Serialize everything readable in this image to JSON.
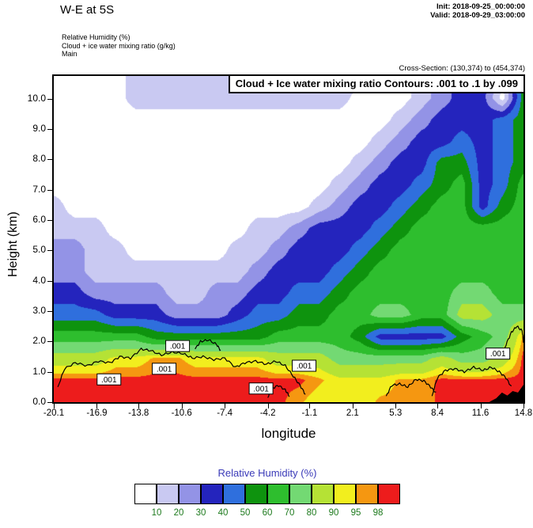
{
  "header": {
    "title": "W-E at 5S",
    "init_line": "Init: 2018-09-25_00:00:00",
    "valid_line": "Valid: 2018-09-29_03:00:00",
    "legend_lines": [
      "Relative Humidity  (%)",
      "Cloud + ice water mixing ratio  (g/kg)",
      "Main"
    ],
    "cross_section": "Cross-Section: (130,374) to (454,374)"
  },
  "plot": {
    "inner_title": "Cloud + Ice water mixing ratio Contours: .001 to .1 by .099",
    "xlabel": "longitude",
    "ylabel": "Height (km)"
  },
  "colorbar": {
    "title": "Relative Humidity  (%)",
    "labels": [
      "10",
      "20",
      "30",
      "40",
      "50",
      "60",
      "70",
      "80",
      "90",
      "95",
      "98"
    ],
    "title_color": "#3a3ab8",
    "label_color": "#1d7a1d"
  },
  "chart_data": {
    "type": "heatmap",
    "title": "Cloud + Ice water mixing ratio Contours: .001 to .1 by .099",
    "xlabel": "longitude",
    "ylabel": "Height (km)",
    "x_range": [
      -20.1,
      14.8
    ],
    "y_range": [
      0,
      10.75
    ],
    "x_ticks": [
      "-20.1",
      "-16.9",
      "-13.8",
      "-10.6",
      "-7.4",
      "-4.2",
      "-1.1",
      "2.1",
      "5.3",
      "8.4",
      "11.6",
      "14.8"
    ],
    "y_ticks": [
      "0.0",
      "1.0",
      "2.0",
      "3.0",
      "4.0",
      "5.0",
      "6.0",
      "7.0",
      "8.0",
      "9.0",
      "10.0"
    ],
    "palette": {
      "thresholds": [
        10,
        20,
        30,
        40,
        50,
        60,
        70,
        80,
        90,
        95,
        98
      ],
      "colors": [
        "#ffffff",
        "#c9c9f2",
        "#9393e6",
        "#2424bd",
        "#2f6fdd",
        "#0e930e",
        "#2ebe2e",
        "#73d973",
        "#b5e235",
        "#f2ee1e",
        "#f59711",
        "#ed1c1c"
      ]
    },
    "x": [
      -20.1,
      -18.58,
      -17.07,
      -15.55,
      -14.03,
      -12.51,
      -11.0,
      -9.48,
      -7.96,
      -6.44,
      -4.93,
      -3.41,
      -1.89,
      -0.37,
      1.14,
      2.66,
      4.18,
      5.7,
      7.21,
      8.73,
      10.25,
      11.77,
      13.28,
      14.8
    ],
    "y": [
      0,
      0.72,
      1.43,
      2.15,
      2.87,
      3.58,
      4.3,
      5.02,
      5.73,
      6.45,
      7.17,
      7.88,
      8.6,
      9.32,
      10.03,
      10.75
    ],
    "rh_values": [
      [
        99,
        99,
        99,
        99,
        99,
        99,
        99,
        99,
        99,
        99,
        99,
        99,
        96,
        92,
        92,
        92,
        96,
        96,
        96,
        99,
        99,
        99,
        99,
        99
      ],
      [
        99,
        99,
        99,
        99,
        99,
        99,
        99,
        99,
        99,
        99,
        99,
        99,
        99,
        96,
        92,
        92,
        92,
        96,
        96,
        99,
        99,
        99,
        99,
        99
      ],
      [
        85,
        85,
        85,
        92,
        92,
        96,
        96,
        92,
        92,
        92,
        92,
        85,
        85,
        85,
        75,
        75,
        75,
        75,
        75,
        85,
        75,
        75,
        85,
        99
      ],
      [
        65,
        65,
        65,
        65,
        65,
        55,
        55,
        55,
        55,
        55,
        55,
        65,
        65,
        65,
        65,
        55,
        35,
        35,
        35,
        35,
        55,
        65,
        75,
        96
      ],
      [
        45,
        45,
        45,
        35,
        35,
        35,
        25,
        25,
        25,
        35,
        45,
        45,
        55,
        55,
        65,
        65,
        75,
        75,
        65,
        65,
        85,
        85,
        75,
        75
      ],
      [
        35,
        35,
        25,
        25,
        25,
        25,
        15,
        15,
        25,
        25,
        35,
        35,
        45,
        45,
        55,
        65,
        65,
        65,
        65,
        65,
        75,
        75,
        65,
        65
      ],
      [
        25,
        25,
        15,
        15,
        15,
        15,
        15,
        15,
        15,
        15,
        25,
        35,
        35,
        35,
        45,
        55,
        65,
        65,
        65,
        65,
        65,
        65,
        65,
        65
      ],
      [
        25,
        25,
        15,
        15,
        5,
        5,
        5,
        5,
        5,
        15,
        15,
        25,
        35,
        35,
        35,
        45,
        55,
        65,
        65,
        65,
        65,
        65,
        65,
        65
      ],
      [
        15,
        15,
        15,
        5,
        5,
        5,
        5,
        5,
        5,
        5,
        15,
        15,
        25,
        35,
        35,
        35,
        45,
        55,
        65,
        65,
        65,
        65,
        65,
        65
      ],
      [
        15,
        5,
        5,
        5,
        5,
        5,
        5,
        5,
        5,
        5,
        5,
        5,
        5,
        15,
        25,
        35,
        35,
        45,
        55,
        65,
        65,
        35,
        55,
        65
      ],
      [
        5,
        5,
        5,
        5,
        5,
        5,
        5,
        5,
        5,
        5,
        5,
        5,
        5,
        5,
        15,
        25,
        35,
        35,
        45,
        55,
        65,
        35,
        45,
        65
      ],
      [
        5,
        5,
        5,
        5,
        5,
        5,
        5,
        5,
        5,
        5,
        5,
        5,
        5,
        5,
        5,
        15,
        25,
        35,
        35,
        55,
        55,
        35,
        45,
        55
      ],
      [
        5,
        5,
        5,
        5,
        5,
        5,
        5,
        5,
        5,
        5,
        5,
        5,
        5,
        5,
        5,
        5,
        15,
        25,
        35,
        35,
        45,
        35,
        45,
        55
      ],
      [
        5,
        5,
        5,
        5,
        5,
        5,
        5,
        5,
        5,
        5,
        5,
        5,
        5,
        5,
        5,
        5,
        5,
        15,
        25,
        35,
        35,
        35,
        45,
        55
      ],
      [
        5,
        5,
        5,
        5,
        15,
        15,
        15,
        15,
        15,
        15,
        15,
        15,
        15,
        15,
        15,
        5,
        5,
        5,
        15,
        25,
        35,
        35,
        5,
        55
      ],
      [
        5,
        5,
        5,
        5,
        15,
        15,
        15,
        15,
        15,
        15,
        15,
        15,
        15,
        15,
        15,
        15,
        5,
        5,
        15,
        25,
        35,
        35,
        15,
        55
      ]
    ],
    "terrain": [
      [
        12.3,
        0
      ],
      [
        12.8,
        0.12
      ],
      [
        13.2,
        0.3
      ],
      [
        13.6,
        0.2
      ],
      [
        14.0,
        0.35
      ],
      [
        14.4,
        0.3
      ],
      [
        14.8,
        0.55
      ],
      [
        14.8,
        0
      ]
    ],
    "cloud_contours": [
      {
        "points": [
          [
            -19.8,
            0.5
          ],
          [
            -19.3,
            1.1
          ],
          [
            -18.5,
            1.3
          ],
          [
            -17.6,
            1.2
          ],
          [
            -16.8,
            1.35
          ],
          [
            -15.9,
            1.3
          ],
          [
            -15.2,
            1.5
          ],
          [
            -14.4,
            1.45
          ],
          [
            -13.6,
            1.75
          ],
          [
            -12.9,
            1.7
          ],
          [
            -12.1,
            1.55
          ],
          [
            -11.3,
            1.65
          ],
          [
            -10.5,
            1.6
          ],
          [
            -9.8,
            1.45
          ],
          [
            -9.0,
            1.5
          ],
          [
            -8.2,
            1.4
          ],
          [
            -7.4,
            1.45
          ],
          [
            -6.6,
            1.15
          ],
          [
            -5.9,
            1.3
          ],
          [
            -5.1,
            1.35
          ],
          [
            -4.3,
            1.25
          ],
          [
            -3.6,
            1.35
          ],
          [
            -2.9,
            1.2
          ],
          [
            -2.3,
            0.85
          ],
          [
            -1.8,
            0.55
          ],
          [
            -1.4,
            0.25
          ]
        ]
      },
      {
        "points": [
          [
            -4.2,
            0.15
          ],
          [
            -3.9,
            0.45
          ],
          [
            -3.4,
            0.55
          ],
          [
            -2.9,
            0.4
          ],
          [
            -2.6,
            0.2
          ]
        ]
      },
      {
        "points": [
          [
            -9.6,
            1.75
          ],
          [
            -9.2,
            2.0
          ],
          [
            -8.6,
            2.05
          ],
          [
            -8.0,
            1.9
          ],
          [
            -7.7,
            1.7
          ]
        ]
      },
      {
        "points": [
          [
            4.6,
            0.2
          ],
          [
            5.0,
            0.55
          ],
          [
            5.6,
            0.6
          ],
          [
            6.2,
            0.5
          ],
          [
            6.8,
            0.75
          ],
          [
            7.4,
            0.7
          ],
          [
            7.9,
            0.5
          ],
          [
            8.3,
            0.3
          ]
        ]
      },
      {
        "points": [
          [
            8.0,
            0.2
          ],
          [
            8.4,
            0.8
          ],
          [
            9.0,
            1.05
          ],
          [
            9.7,
            1.1
          ],
          [
            10.4,
            1.0
          ],
          [
            11.1,
            1.15
          ],
          [
            11.8,
            1.05
          ],
          [
            12.4,
            1.15
          ],
          [
            13.0,
            1.0
          ],
          [
            13.5,
            0.8
          ],
          [
            13.9,
            0.5
          ]
        ]
      },
      {
        "points": [
          [
            13.2,
            1.45
          ],
          [
            13.5,
            1.9
          ],
          [
            13.9,
            2.3
          ],
          [
            14.3,
            2.5
          ],
          [
            14.7,
            2.35
          ],
          [
            14.8,
            1.95
          ]
        ]
      }
    ],
    "contour_labels": [
      {
        "text": ".001",
        "lon": -16.0,
        "km": 0.75
      },
      {
        "text": ".001",
        "lon": -11.9,
        "km": 1.1
      },
      {
        "text": ".001",
        "lon": -10.9,
        "km": 1.85
      },
      {
        "text": ".001",
        "lon": -4.7,
        "km": 0.45
      },
      {
        "text": ".001",
        "lon": -1.5,
        "km": 1.2
      },
      {
        "text": ".001",
        "lon": 12.9,
        "km": 1.6
      }
    ]
  }
}
